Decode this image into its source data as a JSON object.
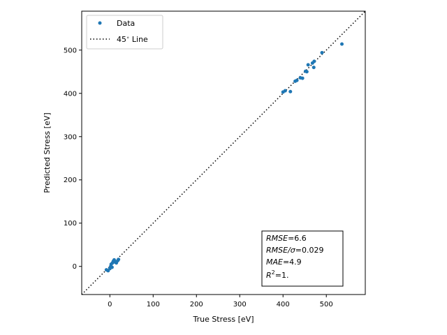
{
  "chart_data": {
    "type": "scatter",
    "xlabel": "True Stress [eV]",
    "ylabel": "Predicted Stress [eV]",
    "xlim": [
      -65,
      590
    ],
    "ylim": [
      -65,
      590
    ],
    "xticks": [
      0,
      100,
      200,
      300,
      400,
      500
    ],
    "yticks": [
      0,
      100,
      200,
      300,
      400,
      500
    ],
    "grid": false,
    "legend_position": "top-left",
    "series": [
      {
        "name": "Data",
        "color": "#1f77b4",
        "points": [
          [
            -8,
            -8
          ],
          [
            -4,
            -10
          ],
          [
            0,
            -5
          ],
          [
            2,
            0
          ],
          [
            3,
            5
          ],
          [
            5,
            -2
          ],
          [
            6,
            8
          ],
          [
            8,
            12
          ],
          [
            10,
            15
          ],
          [
            12,
            10
          ],
          [
            15,
            8
          ],
          [
            18,
            13
          ],
          [
            20,
            16
          ],
          [
            400,
            403
          ],
          [
            405,
            406
          ],
          [
            417,
            404
          ],
          [
            428,
            428
          ],
          [
            432,
            430
          ],
          [
            440,
            436
          ],
          [
            445,
            435
          ],
          [
            452,
            451
          ],
          [
            455,
            450
          ],
          [
            458,
            466
          ],
          [
            468,
            470
          ],
          [
            471,
            460
          ],
          [
            472,
            474
          ],
          [
            490,
            494
          ],
          [
            536,
            514
          ]
        ]
      },
      {
        "name": "45$^{\\circ}$ Line",
        "label_text": "45",
        "label_suffix": " Line",
        "color": "#000000",
        "line": [
          [
            -65,
            -65
          ],
          [
            590,
            590
          ]
        ]
      }
    ],
    "annotation": {
      "lines": [
        {
          "name": "RMSE",
          "value": "=6.6"
        },
        {
          "name": "RMSE/σ",
          "value": "=0.029"
        },
        {
          "name": "MAE",
          "value": "=4.9"
        },
        {
          "name": "R",
          "sup": "2",
          "value": "=1."
        }
      ]
    }
  }
}
